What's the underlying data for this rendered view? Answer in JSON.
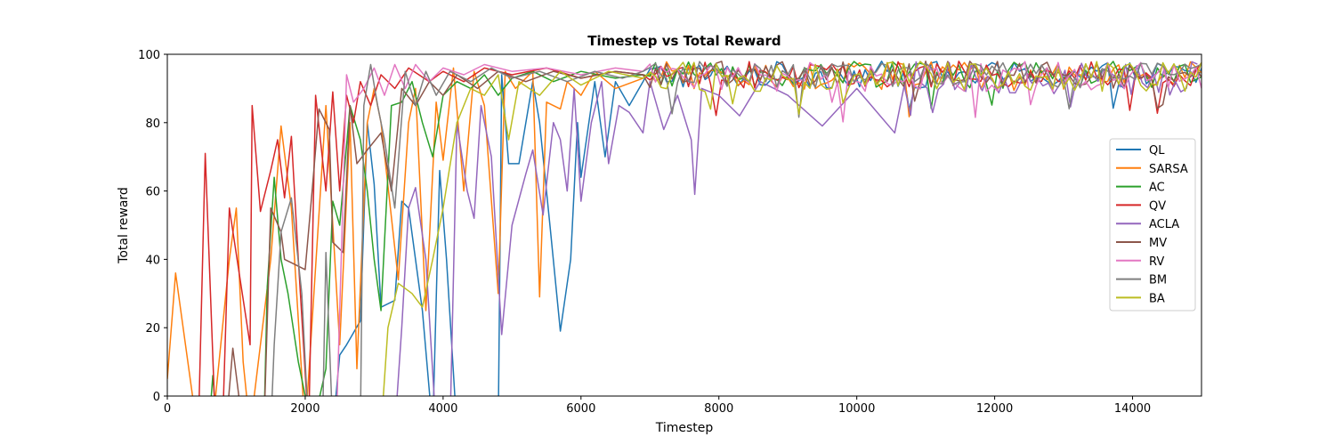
{
  "chart_data": {
    "type": "line",
    "title": "Timestep vs Total Reward",
    "xlabel": "Timestep",
    "ylabel": "Total reward",
    "xlim": [
      0,
      15000
    ],
    "ylim": [
      0,
      100
    ],
    "x_ticks": [
      0,
      2000,
      4000,
      6000,
      8000,
      10000,
      12000,
      14000
    ],
    "y_ticks": [
      0,
      20,
      40,
      60,
      80,
      100
    ],
    "grid": false,
    "legend_position": "center-right",
    "plateau_start": 7000,
    "sample_step": 80,
    "series": [
      {
        "name": "QL",
        "color": "#1f77b4",
        "plateau": [
          90,
          98
        ],
        "rough": [
          [
            0,
            -20
          ],
          [
            2400,
            -10
          ],
          [
            2500,
            12
          ],
          [
            2600,
            15
          ],
          [
            2800,
            22
          ],
          [
            2900,
            80
          ],
          [
            3000,
            62
          ],
          [
            3100,
            26
          ],
          [
            3300,
            28
          ],
          [
            3400,
            57
          ],
          [
            3500,
            55
          ],
          [
            3700,
            25
          ],
          [
            3850,
            -10
          ],
          [
            3950,
            66
          ],
          [
            4050,
            40
          ],
          [
            4200,
            -10
          ],
          [
            4800,
            -10
          ],
          [
            4850,
            94
          ],
          [
            4950,
            68
          ],
          [
            5100,
            68
          ],
          [
            5300,
            92
          ],
          [
            5400,
            80
          ],
          [
            5550,
            50
          ],
          [
            5700,
            19
          ],
          [
            5850,
            40
          ],
          [
            5950,
            80
          ],
          [
            6000,
            64
          ],
          [
            6200,
            92
          ],
          [
            6350,
            70
          ],
          [
            6500,
            92
          ],
          [
            6700,
            85
          ],
          [
            6900,
            92
          ]
        ]
      },
      {
        "name": "SARSA",
        "color": "#ff7f0e",
        "plateau": [
          89,
          98
        ],
        "rough": [
          [
            0,
            5
          ],
          [
            120,
            36
          ],
          [
            400,
            -5
          ],
          [
            600,
            -20
          ],
          [
            900,
            40
          ],
          [
            1000,
            55
          ],
          [
            1100,
            10
          ],
          [
            1200,
            -10
          ],
          [
            1500,
            40
          ],
          [
            1650,
            79
          ],
          [
            1800,
            55
          ],
          [
            2000,
            -10
          ],
          [
            2300,
            85
          ],
          [
            2500,
            15
          ],
          [
            2650,
            80
          ],
          [
            2750,
            8
          ],
          [
            2900,
            80
          ],
          [
            3000,
            90
          ],
          [
            3100,
            80
          ],
          [
            3350,
            34
          ],
          [
            3500,
            80
          ],
          [
            3600,
            90
          ],
          [
            3750,
            25
          ],
          [
            3900,
            86
          ],
          [
            4000,
            69
          ],
          [
            4150,
            96
          ],
          [
            4300,
            60
          ],
          [
            4450,
            95
          ],
          [
            4600,
            85
          ],
          [
            4800,
            30
          ],
          [
            4900,
            95
          ],
          [
            5050,
            90
          ],
          [
            5300,
            95
          ],
          [
            5400,
            29
          ],
          [
            5500,
            86
          ],
          [
            5700,
            84
          ],
          [
            5800,
            92
          ],
          [
            6000,
            88
          ],
          [
            6200,
            95
          ],
          [
            6500,
            90
          ],
          [
            6900,
            93
          ]
        ]
      },
      {
        "name": "AC",
        "color": "#2ca02c",
        "plateau": [
          90,
          98
        ],
        "rough": [
          [
            0,
            -20
          ],
          [
            600,
            -10
          ],
          [
            660,
            6
          ],
          [
            720,
            -10
          ],
          [
            1400,
            -10
          ],
          [
            1450,
            32
          ],
          [
            1550,
            64
          ],
          [
            1650,
            40
          ],
          [
            1750,
            30
          ],
          [
            1900,
            10
          ],
          [
            2100,
            -10
          ],
          [
            2300,
            8
          ],
          [
            2400,
            57
          ],
          [
            2500,
            50
          ],
          [
            2650,
            85
          ],
          [
            2800,
            75
          ],
          [
            2900,
            60
          ],
          [
            3000,
            40
          ],
          [
            3100,
            25
          ],
          [
            3250,
            85
          ],
          [
            3400,
            86
          ],
          [
            3550,
            92
          ],
          [
            3700,
            80
          ],
          [
            3850,
            70
          ],
          [
            4000,
            88
          ],
          [
            4200,
            92
          ],
          [
            4400,
            90
          ],
          [
            4600,
            94
          ],
          [
            4800,
            88
          ],
          [
            5000,
            93
          ],
          [
            5300,
            95
          ],
          [
            5600,
            92
          ],
          [
            6000,
            95
          ],
          [
            6500,
            93
          ],
          [
            6900,
            94
          ]
        ]
      },
      {
        "name": "QV",
        "color": "#d62728",
        "plateau": [
          90,
          98
        ],
        "rough": [
          [
            0,
            -20
          ],
          [
            450,
            -10
          ],
          [
            550,
            71
          ],
          [
            700,
            -10
          ],
          [
            800,
            -10
          ],
          [
            900,
            55
          ],
          [
            1050,
            35
          ],
          [
            1200,
            15
          ],
          [
            1230,
            85
          ],
          [
            1350,
            54
          ],
          [
            1500,
            66
          ],
          [
            1600,
            75
          ],
          [
            1700,
            58
          ],
          [
            1800,
            76
          ],
          [
            1900,
            40
          ],
          [
            2050,
            -10
          ],
          [
            2150,
            88
          ],
          [
            2300,
            60
          ],
          [
            2400,
            89
          ],
          [
            2500,
            60
          ],
          [
            2600,
            88
          ],
          [
            2700,
            80
          ],
          [
            2800,
            92
          ],
          [
            2950,
            85
          ],
          [
            3100,
            94
          ],
          [
            3300,
            90
          ],
          [
            3500,
            96
          ],
          [
            3800,
            92
          ],
          [
            4000,
            95
          ],
          [
            4300,
            92
          ],
          [
            4600,
            96
          ],
          [
            5000,
            94
          ],
          [
            5500,
            96
          ],
          [
            6000,
            93
          ],
          [
            6500,
            95
          ],
          [
            6900,
            94
          ]
        ]
      },
      {
        "name": "ACLA",
        "color": "#9467bd",
        "plateau": [
          88,
          98
        ],
        "rough": [
          [
            0,
            -20
          ],
          [
            3300,
            -10
          ],
          [
            3400,
            20
          ],
          [
            3500,
            55
          ],
          [
            3600,
            61
          ],
          [
            3750,
            40
          ],
          [
            3900,
            -10
          ],
          [
            4100,
            -10
          ],
          [
            4200,
            80
          ],
          [
            4350,
            60
          ],
          [
            4450,
            52
          ],
          [
            4550,
            85
          ],
          [
            4700,
            70
          ],
          [
            4850,
            18
          ],
          [
            5000,
            50
          ],
          [
            5200,
            65
          ],
          [
            5300,
            72
          ],
          [
            5450,
            53
          ],
          [
            5600,
            80
          ],
          [
            5700,
            75
          ],
          [
            5800,
            60
          ],
          [
            5900,
            90
          ],
          [
            6000,
            57
          ],
          [
            6150,
            80
          ],
          [
            6300,
            92
          ],
          [
            6400,
            68
          ],
          [
            6550,
            85
          ],
          [
            6700,
            83
          ],
          [
            6900,
            77
          ],
          [
            7000,
            92
          ],
          [
            7200,
            78
          ],
          [
            7400,
            88
          ],
          [
            7600,
            75
          ],
          [
            7650,
            59
          ],
          [
            7750,
            90
          ],
          [
            8000,
            88
          ],
          [
            8300,
            82
          ],
          [
            8600,
            92
          ],
          [
            9000,
            88
          ],
          [
            9500,
            79
          ],
          [
            10000,
            90
          ],
          [
            10550,
            77
          ],
          [
            10700,
            92
          ]
        ]
      },
      {
        "name": "MV",
        "color": "#8c564b",
        "plateau": [
          90,
          98
        ],
        "rough": [
          [
            0,
            -20
          ],
          [
            850,
            -10
          ],
          [
            950,
            14
          ],
          [
            1100,
            -10
          ],
          [
            1400,
            -10
          ],
          [
            1500,
            55
          ],
          [
            1650,
            48
          ],
          [
            1700,
            40
          ],
          [
            1800,
            39
          ],
          [
            2000,
            37
          ],
          [
            2100,
            60
          ],
          [
            2200,
            84
          ],
          [
            2350,
            78
          ],
          [
            2400,
            45
          ],
          [
            2550,
            42
          ],
          [
            2650,
            85
          ],
          [
            2750,
            68
          ],
          [
            2900,
            72
          ],
          [
            3100,
            77
          ],
          [
            3250,
            60
          ],
          [
            3400,
            90
          ],
          [
            3600,
            85
          ],
          [
            3800,
            92
          ],
          [
            4000,
            88
          ],
          [
            4200,
            94
          ],
          [
            4500,
            90
          ],
          [
            4800,
            95
          ],
          [
            5200,
            92
          ],
          [
            5600,
            95
          ],
          [
            6000,
            93
          ],
          [
            6500,
            95
          ],
          [
            6900,
            94
          ]
        ]
      },
      {
        "name": "RV",
        "color": "#e377c2",
        "plateau": [
          89,
          98
        ],
        "rough": [
          [
            0,
            -20
          ],
          [
            2450,
            -10
          ],
          [
            2600,
            94
          ],
          [
            2700,
            86
          ],
          [
            2850,
            90
          ],
          [
            3000,
            96
          ],
          [
            3150,
            88
          ],
          [
            3300,
            97
          ],
          [
            3450,
            90
          ],
          [
            3600,
            97
          ],
          [
            3800,
            92
          ],
          [
            4000,
            96
          ],
          [
            4300,
            94
          ],
          [
            4600,
            97
          ],
          [
            5000,
            95
          ],
          [
            5500,
            96
          ],
          [
            6000,
            94
          ],
          [
            6500,
            96
          ],
          [
            6900,
            95
          ]
        ]
      },
      {
        "name": "BM",
        "color": "#7f7f7f",
        "plateau": [
          90,
          98
        ],
        "rough": [
          [
            0,
            -20
          ],
          [
            1500,
            -10
          ],
          [
            1550,
            15
          ],
          [
            1650,
            48
          ],
          [
            1800,
            58
          ],
          [
            1950,
            30
          ],
          [
            2050,
            -10
          ],
          [
            2250,
            -10
          ],
          [
            2300,
            42
          ],
          [
            2400,
            -10
          ],
          [
            2800,
            -10
          ],
          [
            2850,
            85
          ],
          [
            2950,
            97
          ],
          [
            3050,
            85
          ],
          [
            3150,
            75
          ],
          [
            3300,
            55
          ],
          [
            3450,
            95
          ],
          [
            3600,
            85
          ],
          [
            3750,
            95
          ],
          [
            3900,
            88
          ],
          [
            4100,
            95
          ],
          [
            4400,
            92
          ],
          [
            4700,
            96
          ],
          [
            5000,
            93
          ],
          [
            5400,
            95
          ],
          [
            5800,
            92
          ],
          [
            6200,
            95
          ],
          [
            6600,
            93
          ],
          [
            6900,
            95
          ]
        ]
      },
      {
        "name": "BA",
        "color": "#bcbd22",
        "plateau": [
          89,
          98
        ],
        "rough": [
          [
            0,
            -20
          ],
          [
            3100,
            -10
          ],
          [
            3200,
            20
          ],
          [
            3350,
            33
          ],
          [
            3550,
            30
          ],
          [
            3700,
            26
          ],
          [
            3850,
            40
          ],
          [
            4000,
            55
          ],
          [
            4200,
            80
          ],
          [
            4400,
            90
          ],
          [
            4600,
            88
          ],
          [
            4800,
            94
          ],
          [
            4950,
            75
          ],
          [
            5100,
            92
          ],
          [
            5400,
            88
          ],
          [
            5700,
            95
          ],
          [
            6000,
            91
          ],
          [
            6400,
            95
          ],
          [
            6900,
            93
          ]
        ]
      }
    ]
  }
}
